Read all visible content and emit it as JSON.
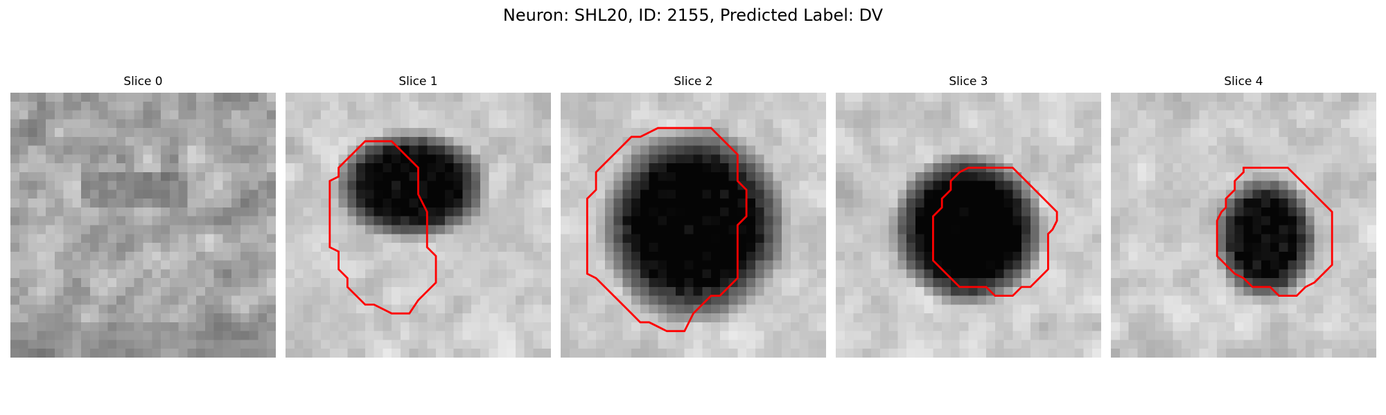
{
  "figure": {
    "title": "Neuron: SHL20, ID: 2155, Predicted Label: DV"
  },
  "colors": {
    "contour": "#ff0000",
    "background": "#ffffff"
  },
  "slices": [
    {
      "title": "Slice 0",
      "image": {
        "seed": 11,
        "pattern": "noise",
        "blob": null
      },
      "contour": []
    },
    {
      "title": "Slice 1",
      "image": {
        "seed": 23,
        "pattern": "blob",
        "blob": {
          "cx": 14.2,
          "cy": 10.5,
          "rx": 9.0,
          "ry": 6.5,
          "depth": 0.78
        }
      },
      "contour": [
        [
          9.0,
          5.5
        ],
        [
          10.0,
          5.5
        ],
        [
          11.0,
          5.5
        ],
        [
          12.0,
          5.5
        ],
        [
          13.0,
          6.5
        ],
        [
          14.0,
          7.5
        ],
        [
          15.0,
          8.5
        ],
        [
          15.0,
          9.5
        ],
        [
          15.0,
          10.5
        ],
        [
          15.0,
          11.5
        ],
        [
          15.5,
          12.5
        ],
        [
          16.0,
          13.5
        ],
        [
          16.0,
          14.5
        ],
        [
          16.0,
          15.5
        ],
        [
          16.0,
          16.5
        ],
        [
          16.0,
          17.5
        ],
        [
          17.0,
          18.5
        ],
        [
          17.0,
          19.5
        ],
        [
          17.0,
          20.5
        ],
        [
          17.0,
          21.5
        ],
        [
          16.0,
          22.5
        ],
        [
          15.0,
          23.5
        ],
        [
          14.0,
          25.0
        ],
        [
          13.0,
          25.0
        ],
        [
          12.0,
          25.0
        ],
        [
          11.0,
          24.5
        ],
        [
          10.0,
          24.0
        ],
        [
          9.0,
          24.0
        ],
        [
          8.0,
          23.0
        ],
        [
          7.0,
          22.0
        ],
        [
          7.0,
          21.0
        ],
        [
          6.0,
          20.0
        ],
        [
          6.0,
          19.0
        ],
        [
          6.0,
          18.0
        ],
        [
          5.0,
          17.5
        ],
        [
          5.0,
          16.0
        ],
        [
          5.0,
          15.0
        ],
        [
          5.0,
          14.0
        ],
        [
          5.0,
          13.0
        ],
        [
          5.0,
          12.0
        ],
        [
          5.0,
          11.0
        ],
        [
          5.0,
          10.0
        ],
        [
          6.0,
          9.5
        ],
        [
          6.0,
          8.5
        ],
        [
          7.0,
          7.5
        ],
        [
          8.0,
          6.5
        ]
      ]
    },
    {
      "title": "Slice 2",
      "image": {
        "seed": 37,
        "pattern": "blob",
        "blob": {
          "cx": 15.0,
          "cy": 15.0,
          "rx": 11.0,
          "ry": 11.5,
          "depth": 0.82
        }
      },
      "contour": [
        [
          11.0,
          4.0
        ],
        [
          12.0,
          4.0
        ],
        [
          13.0,
          4.0
        ],
        [
          14.0,
          4.0
        ],
        [
          15.0,
          4.0
        ],
        [
          16.0,
          4.0
        ],
        [
          17.0,
          4.0
        ],
        [
          18.0,
          5.0
        ],
        [
          19.0,
          6.0
        ],
        [
          20.0,
          7.0
        ],
        [
          20.0,
          8.0
        ],
        [
          20.0,
          9.0
        ],
        [
          20.0,
          10.0
        ],
        [
          21.0,
          11.0
        ],
        [
          21.0,
          12.0
        ],
        [
          21.0,
          13.0
        ],
        [
          21.0,
          14.0
        ],
        [
          20.0,
          15.0
        ],
        [
          20.0,
          16.0
        ],
        [
          20.0,
          17.0
        ],
        [
          20.0,
          18.0
        ],
        [
          20.0,
          19.0
        ],
        [
          20.0,
          20.0
        ],
        [
          20.0,
          21.0
        ],
        [
          19.0,
          22.0
        ],
        [
          18.0,
          23.0
        ],
        [
          17.0,
          23.0
        ],
        [
          16.0,
          24.0
        ],
        [
          15.0,
          25.0
        ],
        [
          14.0,
          27.0
        ],
        [
          13.0,
          27.0
        ],
        [
          12.0,
          27.0
        ],
        [
          11.0,
          26.5
        ],
        [
          10.0,
          26.0
        ],
        [
          9.0,
          26.0
        ],
        [
          8.0,
          25.0
        ],
        [
          7.0,
          24.0
        ],
        [
          6.0,
          23.0
        ],
        [
          5.0,
          22.0
        ],
        [
          4.0,
          21.0
        ],
        [
          3.0,
          20.5
        ],
        [
          3.0,
          19.0
        ],
        [
          3.0,
          18.0
        ],
        [
          3.0,
          17.0
        ],
        [
          3.0,
          16.0
        ],
        [
          3.0,
          15.0
        ],
        [
          3.0,
          14.0
        ],
        [
          3.0,
          13.0
        ],
        [
          3.0,
          12.0
        ],
        [
          4.0,
          11.0
        ],
        [
          4.0,
          10.0
        ],
        [
          4.0,
          9.0
        ],
        [
          5.0,
          8.0
        ],
        [
          6.0,
          7.0
        ],
        [
          7.0,
          6.0
        ],
        [
          8.0,
          5.0
        ],
        [
          9.0,
          5.0
        ],
        [
          10.0,
          4.5
        ]
      ]
    },
    {
      "title": "Slice 3",
      "image": {
        "seed": 51,
        "pattern": "blob",
        "blob": {
          "cx": 15.0,
          "cy": 15.5,
          "rx": 9.0,
          "ry": 9.0,
          "depth": 0.85
        }
      },
      "contour": [
        [
          15.0,
          8.5
        ],
        [
          16.0,
          8.5
        ],
        [
          17.0,
          8.5
        ],
        [
          18.0,
          8.5
        ],
        [
          19.0,
          8.5
        ],
        [
          20.0,
          8.5
        ],
        [
          21.0,
          9.5
        ],
        [
          22.0,
          10.5
        ],
        [
          23.0,
          11.5
        ],
        [
          24.0,
          12.5
        ],
        [
          25.0,
          13.5
        ],
        [
          25.0,
          14.5
        ],
        [
          24.5,
          15.5
        ],
        [
          24.0,
          16.0
        ],
        [
          24.0,
          17.0
        ],
        [
          24.0,
          18.0
        ],
        [
          24.0,
          19.0
        ],
        [
          24.0,
          20.0
        ],
        [
          23.0,
          21.0
        ],
        [
          22.0,
          22.0
        ],
        [
          21.0,
          22.0
        ],
        [
          20.0,
          23.0
        ],
        [
          19.0,
          23.0
        ],
        [
          18.0,
          23.0
        ],
        [
          17.0,
          22.0
        ],
        [
          16.0,
          22.0
        ],
        [
          15.0,
          22.0
        ],
        [
          14.0,
          22.0
        ],
        [
          13.0,
          21.0
        ],
        [
          12.0,
          20.0
        ],
        [
          11.0,
          19.0
        ],
        [
          11.0,
          18.0
        ],
        [
          11.0,
          17.0
        ],
        [
          11.0,
          16.0
        ],
        [
          11.0,
          15.0
        ],
        [
          11.0,
          14.0
        ],
        [
          12.0,
          13.0
        ],
        [
          12.0,
          12.0
        ],
        [
          13.0,
          11.0
        ],
        [
          13.0,
          10.0
        ],
        [
          14.0,
          9.0
        ]
      ]
    },
    {
      "title": "Slice 4",
      "image": {
        "seed": 67,
        "pattern": "blob",
        "blob": {
          "cx": 17.5,
          "cy": 16.5,
          "rx": 6.0,
          "ry": 7.5,
          "depth": 0.75
        }
      },
      "contour": [
        [
          15.0,
          8.5
        ],
        [
          16.0,
          8.5
        ],
        [
          17.0,
          8.5
        ],
        [
          18.0,
          8.5
        ],
        [
          19.0,
          8.5
        ],
        [
          20.0,
          8.5
        ],
        [
          21.0,
          9.5
        ],
        [
          22.0,
          10.5
        ],
        [
          23.0,
          11.5
        ],
        [
          24.0,
          12.5
        ],
        [
          25.0,
          13.5
        ],
        [
          25.0,
          14.5
        ],
        [
          25.0,
          15.5
        ],
        [
          25.0,
          16.5
        ],
        [
          25.0,
          17.5
        ],
        [
          25.0,
          18.5
        ],
        [
          25.0,
          19.5
        ],
        [
          24.0,
          20.5
        ],
        [
          23.0,
          21.5
        ],
        [
          22.0,
          22.0
        ],
        [
          21.0,
          23.0
        ],
        [
          20.0,
          23.0
        ],
        [
          19.0,
          23.0
        ],
        [
          18.0,
          22.0
        ],
        [
          17.0,
          22.0
        ],
        [
          16.0,
          22.0
        ],
        [
          15.0,
          21.0
        ],
        [
          14.0,
          20.5
        ],
        [
          13.0,
          19.5
        ],
        [
          12.0,
          18.5
        ],
        [
          12.0,
          17.5
        ],
        [
          12.0,
          16.5
        ],
        [
          12.0,
          15.5
        ],
        [
          12.0,
          14.5
        ],
        [
          12.5,
          13.5
        ],
        [
          13.0,
          13.0
        ],
        [
          13.0,
          12.0
        ],
        [
          14.0,
          11.0
        ],
        [
          14.0,
          10.0
        ],
        [
          15.0,
          9.0
        ]
      ]
    }
  ]
}
